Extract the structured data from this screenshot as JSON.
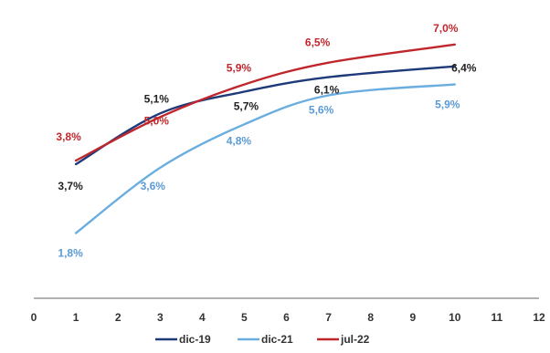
{
  "chart_data": {
    "type": "line",
    "title": "",
    "xlabel": "",
    "ylabel": "",
    "x_ticks": [
      "0",
      "1",
      "2",
      "3",
      "4",
      "5",
      "6",
      "7",
      "8",
      "9",
      "10",
      "11",
      "12"
    ],
    "xlim": [
      0,
      12
    ],
    "ylim": [
      0,
      7.6
    ],
    "grid": false,
    "legend_position": "bottom",
    "series": [
      {
        "name": "dic-19",
        "color": "#1f3a78",
        "points": [
          [
            1,
            3.7
          ],
          [
            3,
            5.1
          ],
          [
            5,
            5.7
          ],
          [
            7,
            6.1
          ],
          [
            10,
            6.4
          ]
        ],
        "labels": [
          {
            "x": 1,
            "text": "3,7%",
            "color": "#222222"
          },
          {
            "x": 3,
            "text": "5,1%",
            "color": "#222222"
          },
          {
            "x": 5,
            "text": "5,7%",
            "color": "#222222"
          },
          {
            "x": 7,
            "text": "6,1%",
            "color": "#222222"
          },
          {
            "x": 10,
            "text": "6,4%",
            "color": "#222222"
          }
        ]
      },
      {
        "name": "dic-21",
        "color": "#6aaee0",
        "points": [
          [
            1,
            1.8
          ],
          [
            3,
            3.6
          ],
          [
            5,
            4.8
          ],
          [
            7,
            5.6
          ],
          [
            10,
            5.9
          ]
        ],
        "labels": [
          {
            "x": 1,
            "text": "1,8%",
            "color": "#5b9bd5"
          },
          {
            "x": 3,
            "text": "3,6%",
            "color": "#5b9bd5"
          },
          {
            "x": 5,
            "text": "4,8%",
            "color": "#5b9bd5"
          },
          {
            "x": 7,
            "text": "5,6%",
            "color": "#5b9bd5"
          },
          {
            "x": 10,
            "text": "5,9%",
            "color": "#5b9bd5"
          }
        ]
      },
      {
        "name": "jul-22",
        "color": "#c0272d",
        "points": [
          [
            1,
            3.8
          ],
          [
            3,
            5.0
          ],
          [
            5,
            5.9
          ],
          [
            7,
            6.5
          ],
          [
            10,
            7.0
          ]
        ],
        "labels": [
          {
            "x": 1,
            "text": "3,8%",
            "color": "#c0272d"
          },
          {
            "x": 3,
            "text": "5,0%",
            "color": "#c0272d"
          },
          {
            "x": 5,
            "text": "5,9%",
            "color": "#c0272d"
          },
          {
            "x": 7,
            "text": "6,5%",
            "color": "#c0272d"
          },
          {
            "x": 10,
            "text": "7,0%",
            "color": "#c0272d"
          }
        ]
      }
    ]
  }
}
